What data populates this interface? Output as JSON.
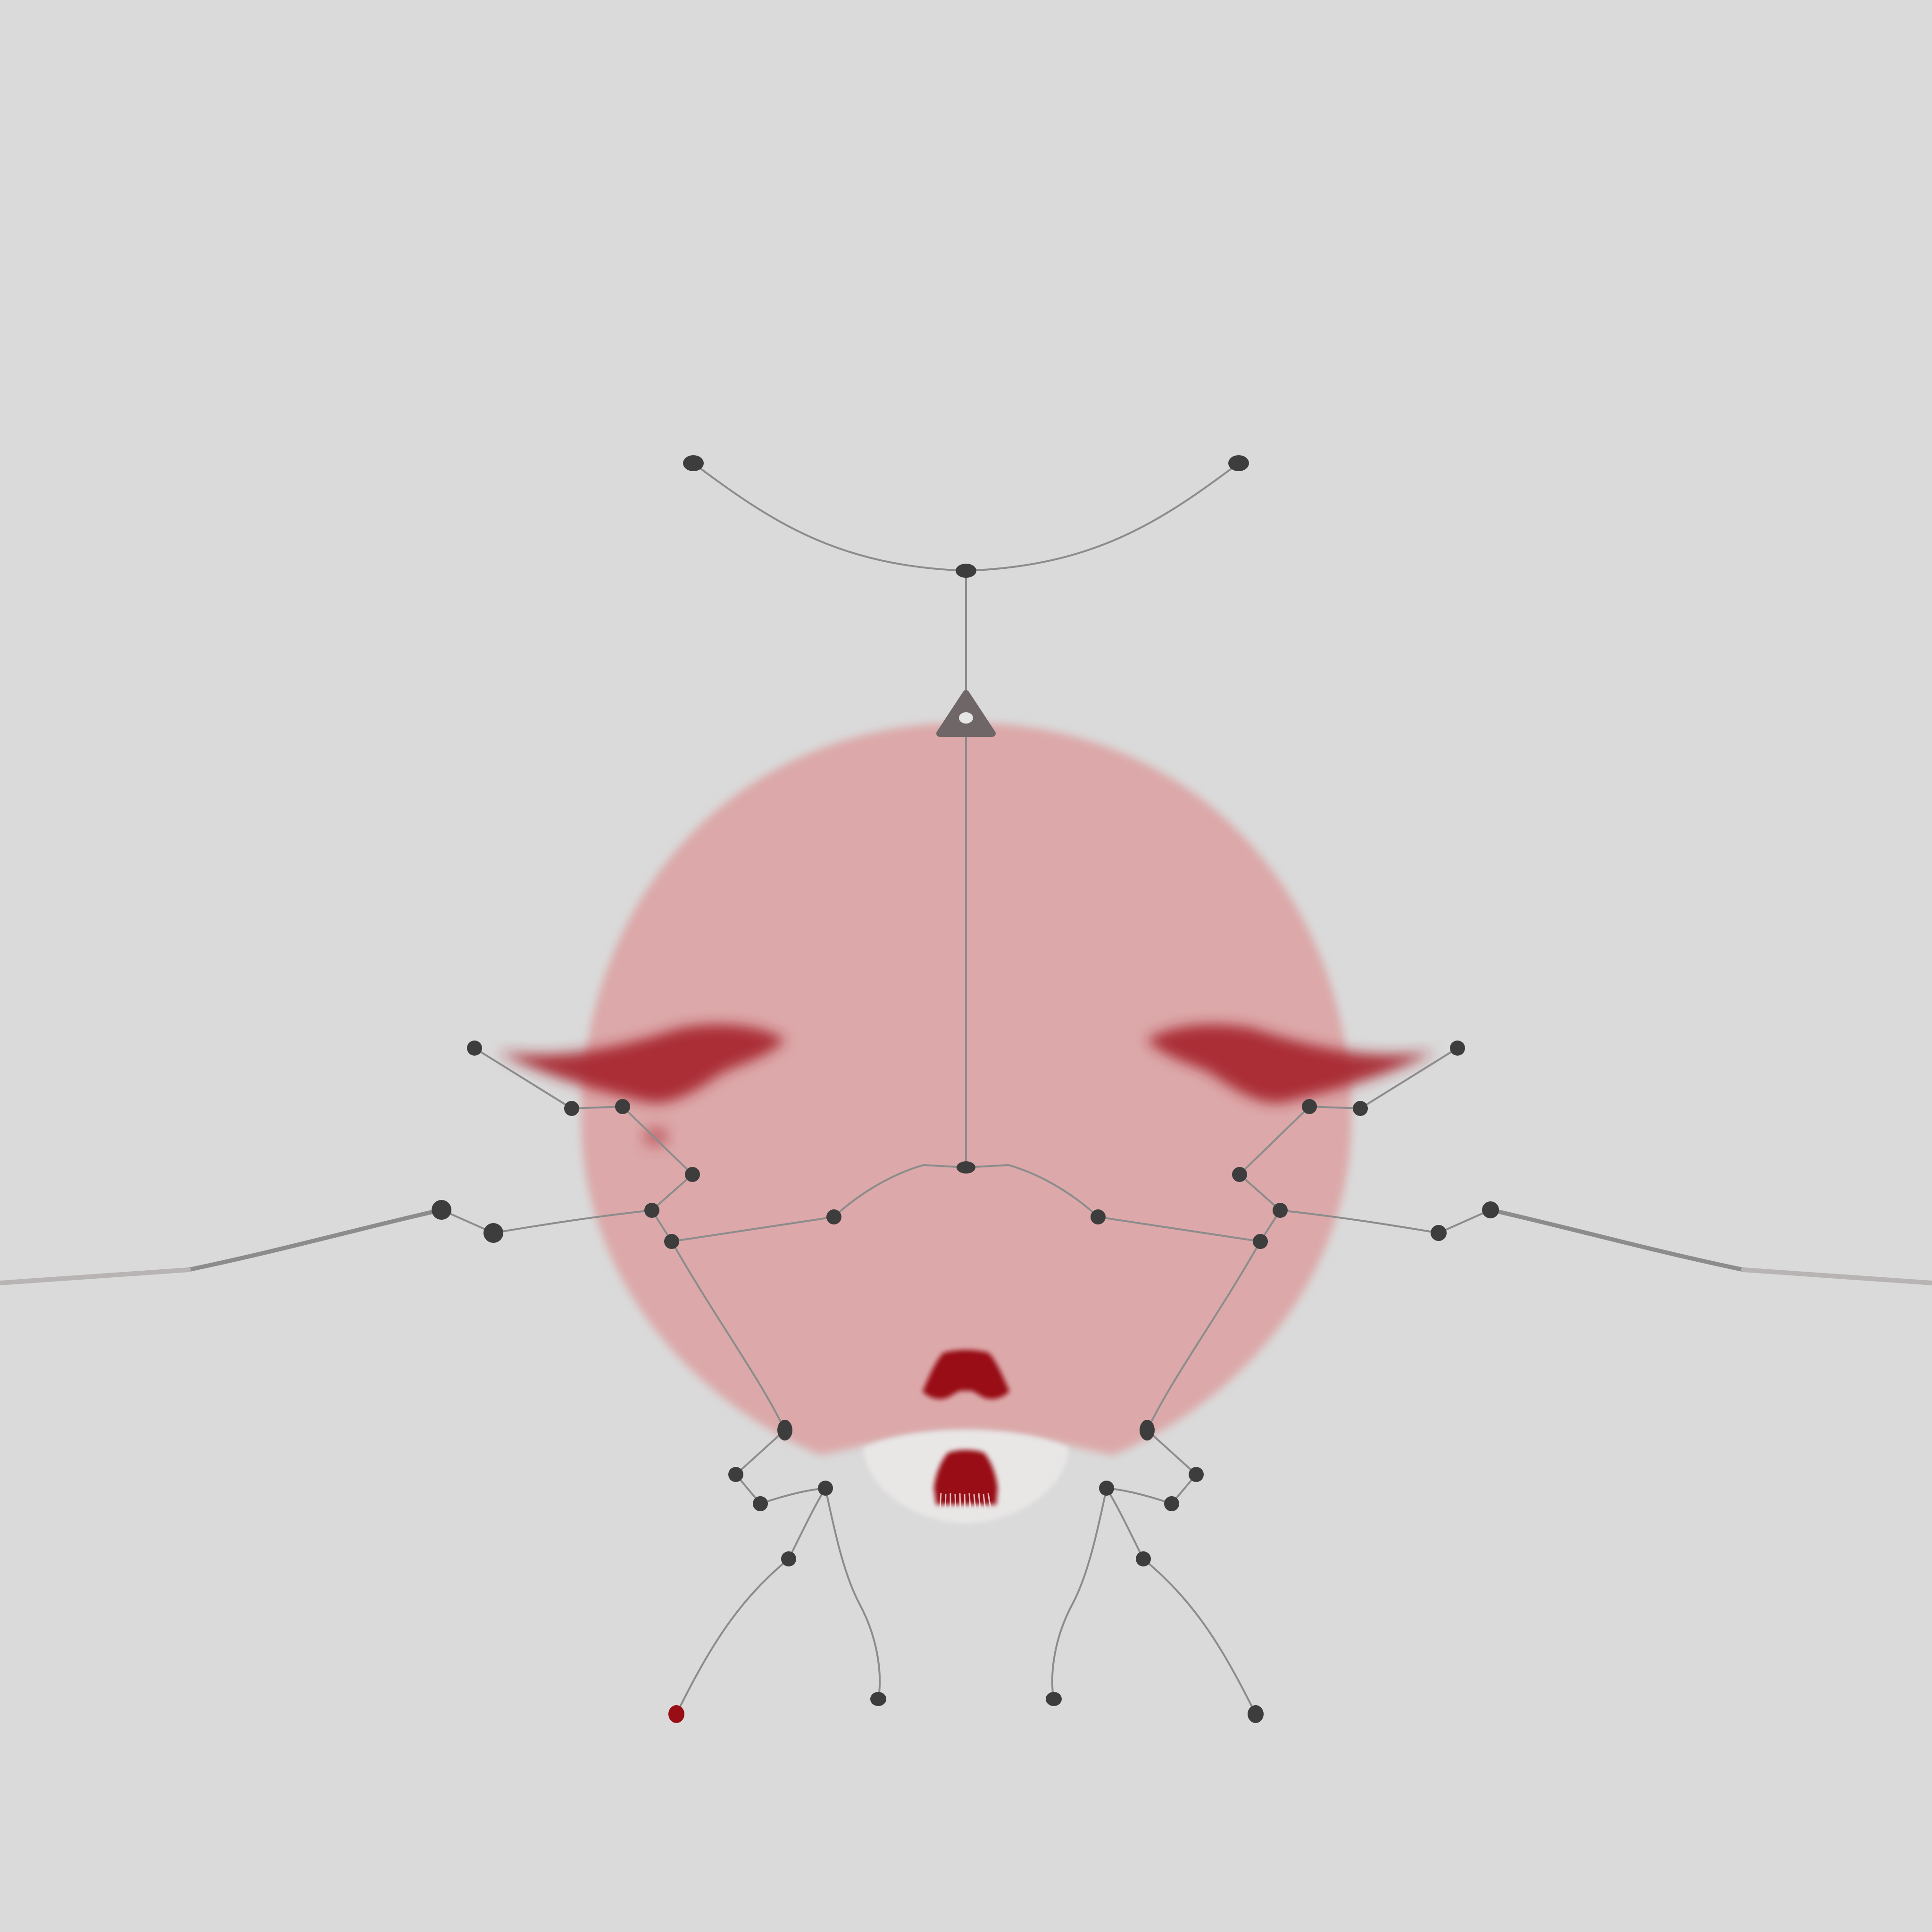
{
  "scene": {
    "background_color": "#dadada",
    "blob_color": "#dca8a9",
    "accent_color": "#990d14",
    "joint_color": "#3d3d3d",
    "bone_color": "#8c8c8c"
  },
  "gizmos": {
    "root_marker": "triangle-handle-icon"
  }
}
